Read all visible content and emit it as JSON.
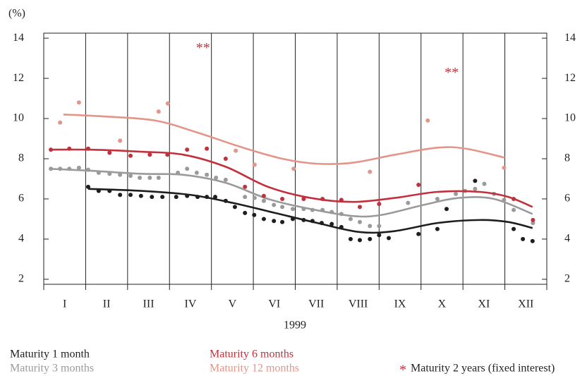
{
  "chart_data": {
    "type": "scatter",
    "y_unit": "(%)",
    "x_label": "1999",
    "categories": [
      "I",
      "II",
      "III",
      "IV",
      "V",
      "VI",
      "VII",
      "VIII",
      "IX",
      "X",
      "XI",
      "XII"
    ],
    "xlim": [
      0,
      12
    ],
    "xticks": [
      0,
      1,
      2,
      3,
      4,
      5,
      6,
      7,
      8,
      9,
      10,
      11,
      12
    ],
    "ylim": [
      1.75,
      14.25
    ],
    "yticks": [
      2,
      4,
      6,
      8,
      10,
      12,
      14
    ],
    "grid": true,
    "series": [
      {
        "name": "Maturity 1 month",
        "color": "#1e1e1e",
        "x": [
          1.06,
          1.31,
          1.57,
          1.82,
          2.07,
          2.32,
          2.58,
          2.83,
          3.16,
          3.42,
          3.67,
          3.89,
          4.09,
          4.34,
          4.56,
          4.8,
          5.02,
          5.25,
          5.49,
          5.69,
          5.94,
          6.2,
          6.41,
          6.63,
          6.87,
          7.1,
          7.32,
          7.54,
          7.78,
          8.0,
          8.23,
          8.94,
          9.39,
          9.61,
          10.29,
          11.21,
          11.43,
          11.66
        ],
        "values": [
          6.6,
          6.4,
          6.4,
          6.2,
          6.2,
          6.15,
          6.1,
          6.1,
          6.1,
          6.15,
          6.1,
          6.1,
          6.1,
          5.9,
          5.6,
          5.3,
          5.2,
          5.0,
          4.9,
          4.85,
          5.0,
          4.95,
          4.9,
          4.8,
          4.75,
          4.6,
          4.0,
          3.95,
          4.0,
          4.2,
          4.05,
          4.25,
          4.5,
          5.5,
          6.9,
          4.5,
          4.0,
          3.9
        ],
        "trend_x": [
          1.06,
          2.32,
          3.5,
          4.51,
          5.52,
          6.53,
          7.54,
          8.38,
          9.39,
          10.4,
          11.08,
          11.66
        ],
        "trend": [
          6.5,
          6.4,
          6.2,
          5.8,
          5.3,
          4.8,
          4.35,
          4.4,
          4.8,
          4.95,
          4.85,
          4.55
        ]
      },
      {
        "name": "Maturity 3 months",
        "color": "#9a9a9a",
        "x": [
          0.17,
          0.39,
          0.61,
          0.84,
          1.06,
          1.31,
          1.57,
          1.82,
          2.07,
          2.29,
          2.53,
          2.74,
          3.2,
          3.42,
          3.65,
          3.89,
          4.11,
          4.34,
          4.8,
          5.03,
          5.25,
          5.49,
          5.69,
          5.94,
          6.2,
          6.41,
          6.65,
          6.87,
          7.1,
          7.32,
          7.54,
          7.78,
          8.0,
          8.69,
          9.39,
          9.83,
          10.05,
          10.29,
          10.51,
          10.74,
          10.98,
          11.21,
          11.67
        ],
        "values": [
          7.5,
          7.5,
          7.5,
          7.55,
          7.45,
          7.3,
          7.25,
          7.2,
          7.15,
          7.05,
          7.05,
          7.05,
          7.3,
          7.5,
          7.3,
          7.2,
          7.05,
          6.95,
          6.1,
          6.05,
          5.9,
          5.7,
          5.6,
          5.5,
          5.5,
          5.45,
          5.45,
          5.35,
          5.25,
          5.0,
          4.85,
          4.65,
          4.65,
          5.8,
          6.0,
          6.25,
          6.4,
          6.5,
          6.75,
          6.25,
          5.95,
          5.45,
          4.8
        ],
        "trend_x": [
          0.13,
          1.14,
          2.32,
          3.33,
          4.34,
          5.35,
          6.36,
          7.37,
          8.05,
          9.06,
          9.9,
          10.74,
          11.66
        ],
        "trend": [
          7.5,
          7.4,
          7.25,
          7.2,
          6.8,
          6.0,
          5.5,
          5.15,
          5.2,
          5.7,
          6.05,
          6.0,
          5.25
        ]
      },
      {
        "name": "Maturity 6 months",
        "color": "#c2303c",
        "x": [
          0.17,
          0.61,
          1.06,
          1.57,
          2.07,
          2.53,
          2.95,
          3.42,
          3.89,
          4.34,
          4.8,
          5.25,
          5.69,
          6.2,
          6.65,
          7.1,
          7.54,
          8.0,
          8.94,
          11.21,
          11.67
        ],
        "values": [
          8.45,
          8.5,
          8.5,
          8.3,
          8.15,
          8.2,
          8.2,
          8.45,
          8.5,
          8.0,
          6.6,
          6.15,
          6.0,
          6.0,
          6.0,
          5.95,
          5.6,
          5.75,
          6.7,
          6.0,
          4.95
        ],
        "trend_x": [
          0.13,
          1.14,
          2.32,
          3.33,
          4.34,
          5.35,
          6.36,
          7.37,
          8.38,
          9.39,
          10.4,
          11.08,
          11.66
        ],
        "trend": [
          8.45,
          8.45,
          8.35,
          8.2,
          7.6,
          6.6,
          6.05,
          5.85,
          6.05,
          6.35,
          6.35,
          6.1,
          5.6
        ]
      },
      {
        "name": "Maturity 12 months",
        "color": "#e3958a",
        "x": [
          0.39,
          0.84,
          1.82,
          2.74,
          2.96,
          4.58,
          5.03,
          5.96,
          7.78,
          9.16,
          10.98
        ],
        "values": [
          9.8,
          10.8,
          8.9,
          10.35,
          10.75,
          8.4,
          7.7,
          7.5,
          7.35,
          9.9,
          7.55
        ],
        "trend_x": [
          0.47,
          1.48,
          2.66,
          3.67,
          4.68,
          5.69,
          6.53,
          7.37,
          8.38,
          9.39,
          10.07,
          11.0
        ],
        "trend": [
          10.2,
          10.1,
          9.9,
          9.3,
          8.6,
          8.0,
          7.75,
          7.8,
          8.2,
          8.55,
          8.5,
          8.05
        ]
      }
    ],
    "annotations": [
      {
        "text": "**",
        "x": 3.8,
        "y": 13.47
      },
      {
        "text": "**",
        "x": 9.73,
        "y": 12.24
      }
    ],
    "extra_legend": {
      "symbol": "*",
      "label": "Maturity 2 years (fixed interest)",
      "color": "#c2303c"
    }
  }
}
